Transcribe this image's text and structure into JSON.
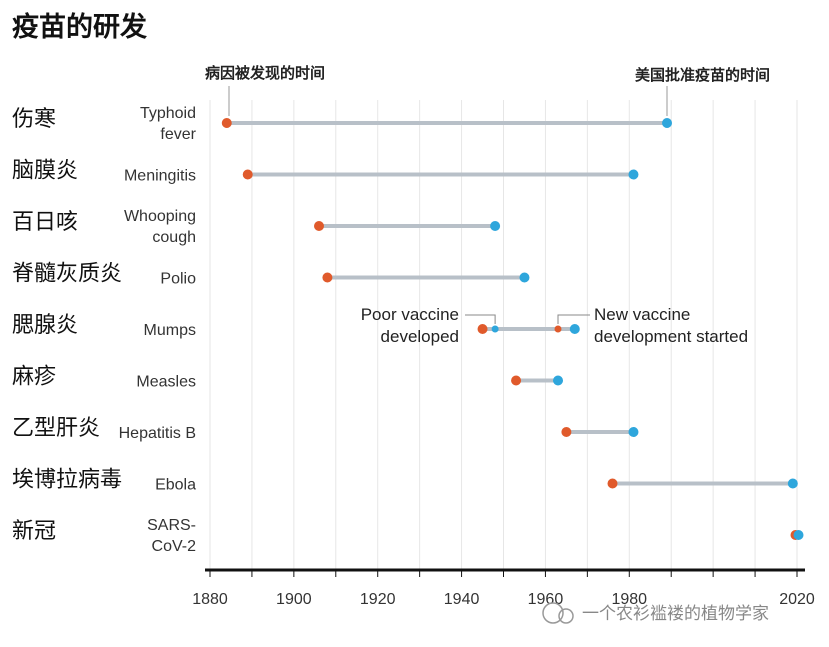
{
  "chart_data": {
    "type": "dumbbell",
    "title": "疫苗的研发",
    "header_left": "病因被发现的时间",
    "header_right": "美国批准疫苗的时间",
    "xlim": [
      1880,
      2020
    ],
    "xticks": [
      1880,
      1900,
      1920,
      1940,
      1960,
      1980,
      2020
    ],
    "rows": [
      {
        "zh": "伤寒",
        "en": [
          "Typhoid",
          "fever"
        ],
        "discovered": 1884,
        "vaccine": 1989
      },
      {
        "zh": "脑膜炎",
        "en": [
          "Meningitis"
        ],
        "discovered": 1889,
        "vaccine": 1981
      },
      {
        "zh": "百日咳",
        "en": [
          "Whooping",
          "cough"
        ],
        "discovered": 1906,
        "vaccine": 1948
      },
      {
        "zh": "脊髓灰质炎",
        "en": [
          "Polio"
        ],
        "discovered": 1908,
        "vaccine": 1955
      },
      {
        "zh": "腮腺炎",
        "en": [
          "Mumps"
        ],
        "discovered": 1945,
        "vaccine": 1967
      },
      {
        "zh": "麻疹",
        "en": [
          "Measles"
        ],
        "discovered": 1953,
        "vaccine": 1963
      },
      {
        "zh": "乙型肝炎",
        "en": [
          "Hepatitis B"
        ],
        "discovered": 1965,
        "vaccine": 1981
      },
      {
        "zh": "埃博拉病毒",
        "en": [
          "Ebola"
        ],
        "discovered": 1976,
        "vaccine": 2019
      },
      {
        "zh": "新冠",
        "en": [
          "SARS-",
          "CoV-2"
        ],
        "discovered": 2020,
        "vaccine": 2020
      }
    ],
    "mumps_notes": {
      "poor": {
        "year": 1948,
        "text": [
          "Poor vaccine",
          "developed"
        ]
      },
      "new": {
        "year": 1963,
        "text": [
          "New vaccine",
          "development started"
        ]
      }
    },
    "colors": {
      "discovered": "#e05a2b",
      "vaccine": "#2ea6dc",
      "connector": "#b8c0c8",
      "grid": "#e6e6e6"
    }
  },
  "watermark": "一个农衫褴褛的植物学家"
}
